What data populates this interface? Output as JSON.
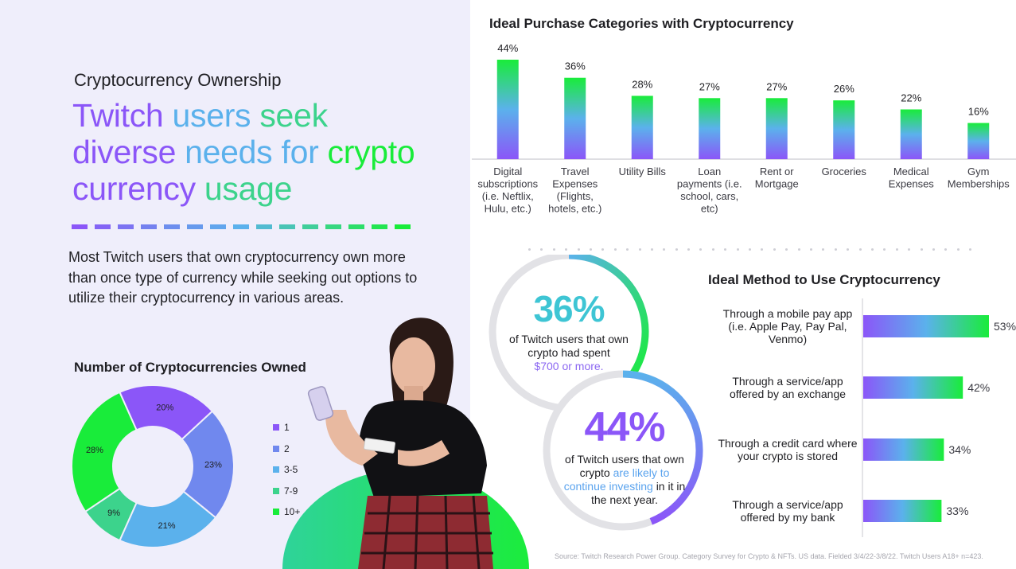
{
  "header": {
    "eyebrow": "Cryptocurrency Ownership",
    "headline_words": [
      "Twitch",
      "users",
      "seek",
      "diverse",
      "needs",
      "for",
      "crypto",
      "currency",
      "usage"
    ],
    "intro": "Most Twitch users that own cryptocurrency own more than once type of currency while seeking out options to utilize their cryptocurrency in various areas."
  },
  "colors": {
    "purple": "#8b56f8",
    "periwinkle": "#7088ee",
    "sky": "#5bb1ec",
    "teal": "#3cd38c",
    "green": "#19ec3a",
    "panel": "#efeefb"
  },
  "stats": {
    "stat1": {
      "value": "36%",
      "text_before": "of Twitch users that own crypto had spent",
      "highlight": "$700 or more.",
      "text_after": ""
    },
    "stat2": {
      "value": "44%",
      "text_before": "of Twitch users that own crypto",
      "highlight": "are likely to continue investing",
      "text_after": "in it in the next year."
    }
  },
  "source": "Source: Twitch Research Power Group. Category Survey for Crypto & NFTs. US data. Fielded 3/4/22-3/8/22. Twitch Users A18+ n=423.",
  "chart_data": [
    {
      "type": "bar",
      "title": "Ideal Purchase Categories with Cryptocurrency",
      "categories": [
        "Digital subscriptions (i.e. Neftlix, Hulu, etc.)",
        "Travel Expenses (Flights, hotels, etc.)",
        "Utility Bills",
        "Loan payments (i.e. school, cars, etc)",
        "Rent or Mortgage",
        "Groceries",
        "Medical Expenses",
        "Gym Memberships"
      ],
      "category_lines": [
        [
          "Digital",
          "subscriptions",
          "(i.e. Neftlix,",
          "Hulu, etc.)"
        ],
        [
          "Travel",
          "Expenses",
          "(Flights,",
          "hotels, etc.)"
        ],
        [
          "Utility Bills"
        ],
        [
          "Loan",
          "payments (i.e.",
          "school, cars,",
          "etc)"
        ],
        [
          "Rent or",
          "Mortgage"
        ],
        [
          "Groceries"
        ],
        [
          "Medical",
          "Expenses"
        ],
        [
          "Gym",
          "Memberships"
        ]
      ],
      "values": [
        44,
        36,
        28,
        27,
        27,
        26,
        22,
        16
      ],
      "data_labels": [
        "44%",
        "36%",
        "28%",
        "27%",
        "27%",
        "26%",
        "22%",
        "16%"
      ],
      "ylim": [
        0,
        44
      ]
    },
    {
      "type": "bar",
      "orientation": "horizontal",
      "title": "Ideal Method to Use Cryptocurrency",
      "categories": [
        "Through a mobile pay app (i.e. Apple Pay, Pay Pal, Venmo)",
        "Through a service/app offered by an exchange",
        "Through a credit card where your crypto is stored",
        "Through a service/app offered by my bank"
      ],
      "category_lines": [
        [
          "Through a mobile pay app",
          "(i.e. Apple Pay, Pay Pal,",
          "Venmo)"
        ],
        [
          "Through a service/app",
          "offered by an exchange"
        ],
        [
          "Through a credit card where",
          "your crypto is stored"
        ],
        [
          "Through a service/app",
          "offered by my bank"
        ]
      ],
      "values": [
        53,
        42,
        34,
        33
      ],
      "data_labels": [
        "53%",
        "42%",
        "34%",
        "33%"
      ],
      "xlim": [
        0,
        53
      ]
    },
    {
      "type": "pie",
      "donut": true,
      "title": "Number of Cryptocurrencies Owned",
      "categories": [
        "1",
        "2",
        "3-5",
        "7-9",
        "10+"
      ],
      "values": [
        20,
        23,
        21,
        9,
        28
      ],
      "data_labels": [
        "20%",
        "23%",
        "21%",
        "9%",
        "28%"
      ],
      "colors": [
        "#8b56f8",
        "#7088ee",
        "#5bb1ec",
        "#3cd38c",
        "#19ec3a"
      ],
      "legend": "right"
    }
  ]
}
